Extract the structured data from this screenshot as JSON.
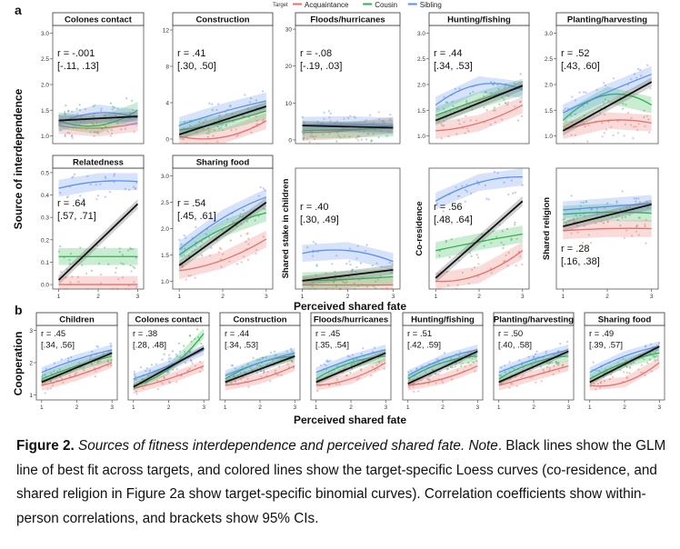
{
  "figure": {
    "panel_a_label": "a",
    "panel_b_label": "b",
    "legend": {
      "title": "Target",
      "items": [
        {
          "label": "Acquaintance",
          "color": "#e8706b"
        },
        {
          "label": "Cousin",
          "color": "#2db34a"
        },
        {
          "label": "Sibling",
          "color": "#5b8ff0"
        }
      ]
    },
    "ylabel_a": "Source of interdependence",
    "ylabel_b": "Cooperation",
    "xlabel_a": "Perceived shared fate",
    "xlabel_b": "Perceived shared fate"
  },
  "caption": {
    "fig_label": "Figure 2.",
    "title_text": "Sources of fitness interdependence and perceived shared fate.",
    "note_label": "Note",
    "body": ". Black lines show the GLM line of best fit across targets, and colored lines show the target-specific Loess curves (co-residence, and shared religion in Figure 2a show target-specific binomial curves). Correlation coefficients show within-person correlations, and brackets show 95% CIs."
  },
  "chart_data": [
    {
      "type": "scatter",
      "panel": "a",
      "title": "Colones contact",
      "ylabel": "",
      "yticks": [
        "1.0",
        "1.5",
        "2.0",
        "2.5",
        "3.0"
      ],
      "ylim": [
        0.85,
        3.15
      ],
      "xlim": [
        0.85,
        3.15
      ],
      "xticks": [],
      "r": "r = -.001",
      "ci": "[-.11, .13]",
      "glm": [
        1.3,
        1.38
      ],
      "series": [
        {
          "name": "Acquaintance",
          "values": [
            1.2,
            1.15,
            1.25
          ]
        },
        {
          "name": "Cousin",
          "values": [
            1.3,
            1.2,
            1.5
          ]
        },
        {
          "name": "Sibling",
          "values": [
            1.25,
            1.45,
            1.35
          ]
        }
      ]
    },
    {
      "type": "scatter",
      "panel": "a",
      "title": "Construction",
      "ylabel": "",
      "yticks": [
        "0",
        "4",
        "8",
        "12"
      ],
      "ylim": [
        -0.5,
        12.5
      ],
      "xlim": [
        0.85,
        3.15
      ],
      "xticks": [],
      "r": "r = .41",
      "ci": "[.30, .50]",
      "glm": [
        0.5,
        3.6
      ],
      "series": [
        {
          "name": "Acquaintance",
          "values": [
            0.3,
            0.2,
            2.0
          ]
        },
        {
          "name": "Cousin",
          "values": [
            1.0,
            1.8,
            3.1
          ]
        },
        {
          "name": "Sibling",
          "values": [
            1.5,
            3.0,
            4.2
          ]
        }
      ]
    },
    {
      "type": "scatter",
      "panel": "a",
      "title": "Floods/hurricanes",
      "ylabel": "",
      "yticks": [
        "0",
        "10",
        "20",
        "30"
      ],
      "ylim": [
        -1,
        31
      ],
      "xlim": [
        0.85,
        3.15
      ],
      "xticks": [],
      "r": "r = -.08",
      "ci": "[-.19, .03]",
      "glm": [
        3.9,
        3.3
      ],
      "series": [
        {
          "name": "Acquaintance",
          "values": [
            2.0,
            2.5,
            4.0
          ]
        },
        {
          "name": "Cousin",
          "values": [
            2.5,
            2.8,
            3.2
          ]
        },
        {
          "name": "Sibling",
          "values": [
            4.0,
            4.2,
            3.8
          ]
        }
      ]
    },
    {
      "type": "scatter",
      "panel": "a",
      "title": "Hunting/fishing",
      "ylabel": "",
      "yticks": [
        "1.0",
        "1.5",
        "2.0",
        "2.5",
        "3.0"
      ],
      "ylim": [
        0.85,
        3.15
      ],
      "xlim": [
        0.85,
        3.15
      ],
      "xticks": [],
      "r": "r = .44",
      "ci": "[.34, .53]",
      "glm": [
        1.3,
        1.98
      ],
      "series": [
        {
          "name": "Acquaintance",
          "values": [
            1.1,
            1.25,
            1.6
          ]
        },
        {
          "name": "Cousin",
          "values": [
            1.4,
            1.7,
            1.95
          ]
        },
        {
          "name": "Sibling",
          "values": [
            1.6,
            2.0,
            1.9
          ]
        }
      ]
    },
    {
      "type": "scatter",
      "panel": "a",
      "title": "Planting/harvesting",
      "ylabel": "",
      "yticks": [
        "1.0",
        "1.5",
        "2.0",
        "2.5",
        "3.0"
      ],
      "ylim": [
        0.85,
        3.15
      ],
      "xlim": [
        0.85,
        3.15
      ],
      "xticks": [],
      "r": "r = .52",
      "ci": "[.43, .60]",
      "glm": [
        1.1,
        2.05
      ],
      "series": [
        {
          "name": "Acquaintance",
          "values": [
            1.1,
            1.3,
            1.25
          ]
        },
        {
          "name": "Cousin",
          "values": [
            1.3,
            1.8,
            1.6
          ]
        },
        {
          "name": "Sibling",
          "values": [
            1.45,
            1.85,
            2.2
          ]
        }
      ]
    },
    {
      "type": "scatter",
      "panel": "a",
      "title": "Relatedness",
      "ylabel": "",
      "yticks": [
        "0.0",
        "0.1",
        "0.2",
        "0.3",
        "0.4",
        "0.5"
      ],
      "ylim": [
        -0.02,
        0.52
      ],
      "xlim": [
        0.85,
        3.15
      ],
      "xticks": [
        "1",
        "2",
        "3"
      ],
      "r": "r = .64",
      "ci": "[.57, .71]",
      "glm": [
        0.02,
        0.36
      ],
      "series": [
        {
          "name": "Acquaintance",
          "values": [
            0.0,
            0.0,
            0.0
          ]
        },
        {
          "name": "Cousin",
          "values": [
            0.125,
            0.125,
            0.125
          ]
        },
        {
          "name": "Sibling",
          "values": [
            0.43,
            0.46,
            0.46
          ]
        }
      ]
    },
    {
      "type": "scatter",
      "panel": "a",
      "title": "Sharing food",
      "ylabel": "",
      "yticks": [
        "1.0",
        "1.5",
        "2.0",
        "2.5",
        "3.0"
      ],
      "ylim": [
        0.85,
        3.15
      ],
      "xlim": [
        0.85,
        3.15
      ],
      "xticks": [
        "1",
        "2",
        "3"
      ],
      "r": "r = .54",
      "ci": "[.45, .61]",
      "glm": [
        1.3,
        2.5
      ],
      "series": [
        {
          "name": "Acquaintance",
          "values": [
            1.2,
            1.4,
            1.8
          ]
        },
        {
          "name": "Cousin",
          "values": [
            1.5,
            2.0,
            2.3
          ]
        },
        {
          "name": "Sibling",
          "values": [
            1.6,
            2.2,
            2.6
          ]
        }
      ]
    },
    {
      "type": "scatter",
      "panel": "a",
      "title": "",
      "ylabel": "Shared stake in children",
      "yticks": [],
      "ylim": [
        -0.1,
        4.3
      ],
      "xlim": [
        0.85,
        3.15
      ],
      "xticks": [
        "1",
        "2",
        "3"
      ],
      "r": "r = .40",
      "ci": "[.30, .49]",
      "glm": [
        0.2,
        0.6
      ],
      "series": [
        {
          "name": "Acquaintance",
          "values": [
            0.05,
            0.05,
            0.05
          ]
        },
        {
          "name": "Cousin",
          "values": [
            0.2,
            0.25,
            0.35
          ]
        },
        {
          "name": "Sibling",
          "values": [
            1.2,
            1.3,
            0.9
          ]
        }
      ]
    },
    {
      "type": "scatter",
      "panel": "a",
      "title": "",
      "ylabel": "Co-residence",
      "yticks": [],
      "ylim": [
        -0.05,
        1.05
      ],
      "xlim": [
        0.85,
        3.15
      ],
      "xticks": [
        "1",
        "2",
        "3"
      ],
      "r": "r = .56",
      "ci": "[.48, .64]",
      "glm": [
        0.05,
        0.75
      ],
      "series": [
        {
          "name": "Acquaintance",
          "values": [
            0.02,
            0.08,
            0.3
          ]
        },
        {
          "name": "Cousin",
          "values": [
            0.3,
            0.38,
            0.45
          ]
        },
        {
          "name": "Sibling",
          "values": [
            0.75,
            0.92,
            0.97
          ]
        }
      ]
    },
    {
      "type": "scatter",
      "panel": "a",
      "title": "",
      "ylabel": "Shared religion",
      "yticks": [],
      "ylim": [
        -0.05,
        1.05
      ],
      "xlim": [
        0.85,
        3.15
      ],
      "xticks": [
        "1",
        "2",
        "3"
      ],
      "r": "r = .28",
      "ci": "[.16, .38]",
      "glm": [
        0.52,
        0.72
      ],
      "series": [
        {
          "name": "Acquaintance",
          "values": [
            0.48,
            0.5,
            0.5
          ]
        },
        {
          "name": "Cousin",
          "values": [
            0.63,
            0.65,
            0.64
          ]
        },
        {
          "name": "Sibling",
          "values": [
            0.67,
            0.7,
            0.73
          ]
        }
      ]
    },
    {
      "type": "scatter",
      "panel": "b",
      "title": "Children",
      "ylabel": "",
      "yticks": [
        "1",
        "2",
        "3"
      ],
      "ylim": [
        0.85,
        3.15
      ],
      "xlim": [
        0.85,
        3.15
      ],
      "xticks": [
        "1",
        "2",
        "3"
      ],
      "r": "r = .45",
      "ci": "[.34, .56]",
      "glm": [
        1.4,
        2.3
      ],
      "series": [
        {
          "name": "Acquaintance",
          "values": [
            1.3,
            1.6,
            2.0
          ]
        },
        {
          "name": "Cousin",
          "values": [
            1.5,
            1.9,
            2.2
          ]
        },
        {
          "name": "Sibling",
          "values": [
            1.7,
            2.1,
            2.4
          ]
        }
      ]
    },
    {
      "type": "scatter",
      "panel": "b",
      "title": "Colones contact",
      "ylabel": "",
      "yticks": [],
      "ylim": [
        0.85,
        3.15
      ],
      "xlim": [
        0.85,
        3.15
      ],
      "xticks": [
        "1",
        "2",
        "3"
      ],
      "r": "r = .38",
      "ci": "[.28, .48]",
      "glm": [
        1.25,
        2.45
      ],
      "series": [
        {
          "name": "Acquaintance",
          "values": [
            1.2,
            1.5,
            1.9
          ]
        },
        {
          "name": "Cousin",
          "values": [
            1.3,
            1.8,
            2.9
          ]
        },
        {
          "name": "Sibling",
          "values": [
            1.5,
            1.9,
            2.4
          ]
        }
      ]
    },
    {
      "type": "scatter",
      "panel": "b",
      "title": "Construction",
      "ylabel": "",
      "yticks": [],
      "ylim": [
        0.85,
        3.15
      ],
      "xlim": [
        0.85,
        3.15
      ],
      "xticks": [
        "1",
        "2",
        "3"
      ],
      "r": "r = .44",
      "ci": "[.34, .53]",
      "glm": [
        1.4,
        2.2
      ],
      "series": [
        {
          "name": "Acquaintance",
          "values": [
            1.3,
            1.5,
            1.9
          ]
        },
        {
          "name": "Cousin",
          "values": [
            1.5,
            2.0,
            2.2
          ]
        },
        {
          "name": "Sibling",
          "values": [
            1.6,
            2.0,
            2.3
          ]
        }
      ]
    },
    {
      "type": "scatter",
      "panel": "b",
      "title": "Floods/hurricanes",
      "ylabel": "",
      "yticks": [],
      "ylim": [
        0.85,
        3.15
      ],
      "xlim": [
        0.85,
        3.15
      ],
      "xticks": [
        "1",
        "2",
        "3"
      ],
      "r": "r = .45",
      "ci": "[.35, .54]",
      "glm": [
        1.4,
        2.3
      ],
      "series": [
        {
          "name": "Acquaintance",
          "values": [
            1.3,
            1.5,
            2.0
          ]
        },
        {
          "name": "Cousin",
          "values": [
            1.5,
            2.0,
            2.2
          ]
        },
        {
          "name": "Sibling",
          "values": [
            1.7,
            2.1,
            2.4
          ]
        }
      ]
    },
    {
      "type": "scatter",
      "panel": "b",
      "title": "Hunting/fishing",
      "ylabel": "",
      "yticks": [],
      "ylim": [
        0.85,
        3.15
      ],
      "xlim": [
        0.85,
        3.15
      ],
      "xticks": [
        "1",
        "2",
        "3"
      ],
      "r": "r = .51",
      "ci": "[.42, .59]",
      "glm": [
        1.35,
        2.35
      ],
      "series": [
        {
          "name": "Acquaintance",
          "values": [
            1.3,
            1.5,
            1.9
          ]
        },
        {
          "name": "Cousin",
          "values": [
            1.5,
            2.0,
            2.2
          ]
        },
        {
          "name": "Sibling",
          "values": [
            1.6,
            2.1,
            2.4
          ]
        }
      ]
    },
    {
      "type": "scatter",
      "panel": "b",
      "title": "Planting/harvesting",
      "ylabel": "",
      "yticks": [],
      "ylim": [
        0.85,
        3.15
      ],
      "xlim": [
        0.85,
        3.15
      ],
      "xticks": [
        "1",
        "2",
        "3"
      ],
      "r": "r = .50",
      "ci": "[.40, .58]",
      "glm": [
        1.4,
        2.35
      ],
      "series": [
        {
          "name": "Acquaintance",
          "values": [
            1.3,
            1.6,
            1.9
          ]
        },
        {
          "name": "Cousin",
          "values": [
            1.5,
            2.0,
            2.2
          ]
        },
        {
          "name": "Sibling",
          "values": [
            1.7,
            2.1,
            2.4
          ]
        }
      ]
    },
    {
      "type": "scatter",
      "panel": "b",
      "title": "Sharing food",
      "ylabel": "",
      "yticks": [],
      "ylim": [
        0.85,
        3.15
      ],
      "xlim": [
        0.85,
        3.15
      ],
      "xticks": [
        "1",
        "2",
        "3"
      ],
      "r": "r = .49",
      "ci": "[.39, .57]",
      "glm": [
        1.4,
        2.5
      ],
      "series": [
        {
          "name": "Acquaintance",
          "values": [
            1.3,
            1.4,
            2.0
          ]
        },
        {
          "name": "Cousin",
          "values": [
            1.5,
            2.0,
            2.3
          ]
        },
        {
          "name": "Sibling",
          "values": [
            1.7,
            2.2,
            2.5
          ]
        }
      ]
    }
  ]
}
